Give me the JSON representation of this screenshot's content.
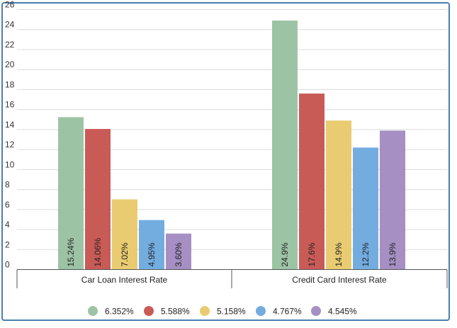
{
  "chart_data": {
    "type": "bar",
    "categories": [
      "Car Loan Interest Rate",
      "Credit Card Interest Rate"
    ],
    "series": [
      {
        "name": "6.352%",
        "color": "#9dc3a5",
        "values": [
          15.24,
          24.9
        ],
        "labels": [
          "15.24%",
          "24.9%"
        ]
      },
      {
        "name": "5.588%",
        "color": "#c95b57",
        "values": [
          14.06,
          17.6
        ],
        "labels": [
          "14.06%",
          "17.6%"
        ]
      },
      {
        "name": "5.158%",
        "color": "#e9cc71",
        "values": [
          7.02,
          14.9
        ],
        "labels": [
          "7.02%",
          "14.9%"
        ]
      },
      {
        "name": "4.767%",
        "color": "#73ade0",
        "values": [
          4.95,
          12.2
        ],
        "labels": [
          "4.95%",
          "12.2%"
        ]
      },
      {
        "name": "4.545%",
        "color": "#a68fc3",
        "values": [
          3.6,
          13.9
        ],
        "labels": [
          "3.60%",
          "13.9%"
        ]
      }
    ],
    "yticks": [
      "0",
      "2",
      "4",
      "6",
      "8",
      "10",
      "12",
      "14",
      "16",
      "18",
      "20",
      "22",
      "24",
      "26"
    ],
    "ylim": [
      0,
      26
    ],
    "grid": true,
    "legend_position": "bottom",
    "title": "",
    "xlabel": "",
    "ylabel": ""
  }
}
